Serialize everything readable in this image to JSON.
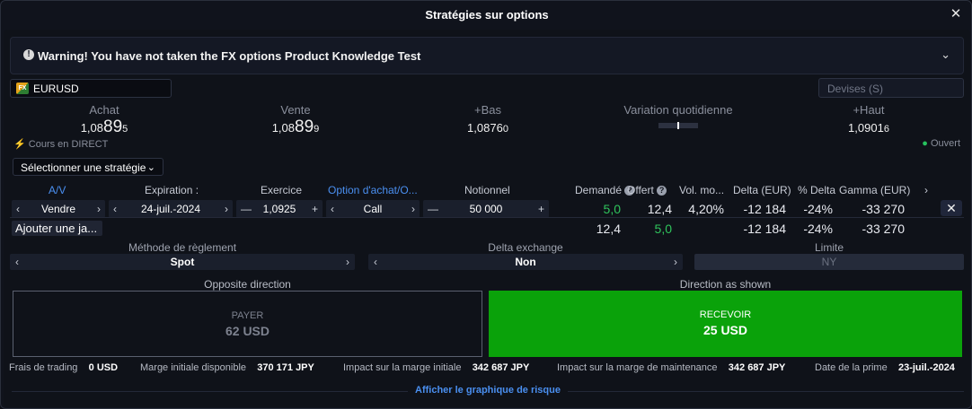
{
  "window": {
    "title": "Stratégies sur options",
    "close_icon": "close-icon"
  },
  "warning": {
    "text": "Warning! You have not taken the FX options Product Knowledge Test"
  },
  "symbol": {
    "flag_text": "FX",
    "name": "EURUSD"
  },
  "currency_input": {
    "placeholder": "Devises (S)"
  },
  "quotes": {
    "bid": {
      "label": "Achat",
      "prefix": "1,08",
      "big": "89",
      "suffix": "5"
    },
    "ask": {
      "label": "Vente",
      "prefix": "1,08",
      "big": "89",
      "suffix": "9"
    },
    "low": {
      "label": "+Bas",
      "prefix": "1,0876",
      "suffix": "0"
    },
    "daily_change": {
      "label": "Variation quotidienne",
      "marker_fraction": 0.5
    },
    "high": {
      "label": "+Haut",
      "prefix": "1,0901",
      "suffix": "6"
    }
  },
  "status": {
    "live": "Cours en DIRECT",
    "market": "Ouvert"
  },
  "strategy_select": {
    "label": "Sélectionner une stratégie"
  },
  "legs_table": {
    "headers": {
      "side": "A/V",
      "expiry": "Expiration :",
      "strike": "Exercice",
      "type": "Option d'achat/O...",
      "notional": "Notionnel",
      "bid": "Demandé",
      "ask": "Offert",
      "vol": "Vol. mo...",
      "delta": "Delta (EUR)",
      "pct_delta": "% Delta",
      "gamma": "Gamma (EUR)"
    },
    "leg": {
      "side": "Vendre",
      "expiry": "24-juil.-2024",
      "strike": "1,0925",
      "type": "Call",
      "notional": "50 000",
      "bid": "5,0",
      "ask": "12,4",
      "vol": "4,20%",
      "delta": "-12 184",
      "pct_delta": "-24%",
      "gamma": "-33 270"
    },
    "totals": {
      "bid": "12,4",
      "ask": "5,0",
      "delta": "-12 184",
      "pct_delta": "-24%",
      "gamma": "-33 270"
    },
    "add_leg": "Ajouter une ja..."
  },
  "settlement": {
    "label": "Méthode de règlement",
    "value": "Spot"
  },
  "delta_exchange": {
    "label": "Delta exchange",
    "value": "Non"
  },
  "limit": {
    "label": "Limite",
    "value": "NY"
  },
  "directions": {
    "opposite": {
      "header": "Opposite direction",
      "action": "PAYER",
      "amount": "62 USD"
    },
    "shown": {
      "header": "Direction as shown",
      "action": "RECEVOIR",
      "amount": "25 USD"
    }
  },
  "footer": {
    "trading_fees": {
      "label": "Frais de trading",
      "value": "0 USD"
    },
    "initial_margin_avail": {
      "label": "Marge initiale disponible",
      "value": "370 171 JPY"
    },
    "impact_initial": {
      "label": "Impact sur la marge initiale",
      "value": "342 687 JPY"
    },
    "impact_maint": {
      "label": "Impact sur la marge de maintenance",
      "value": "342 687 JPY"
    },
    "premium_date": {
      "label": "Date de la prime",
      "value": "23-juil.-2024"
    }
  },
  "risk_link": "Afficher le graphique de risque"
}
